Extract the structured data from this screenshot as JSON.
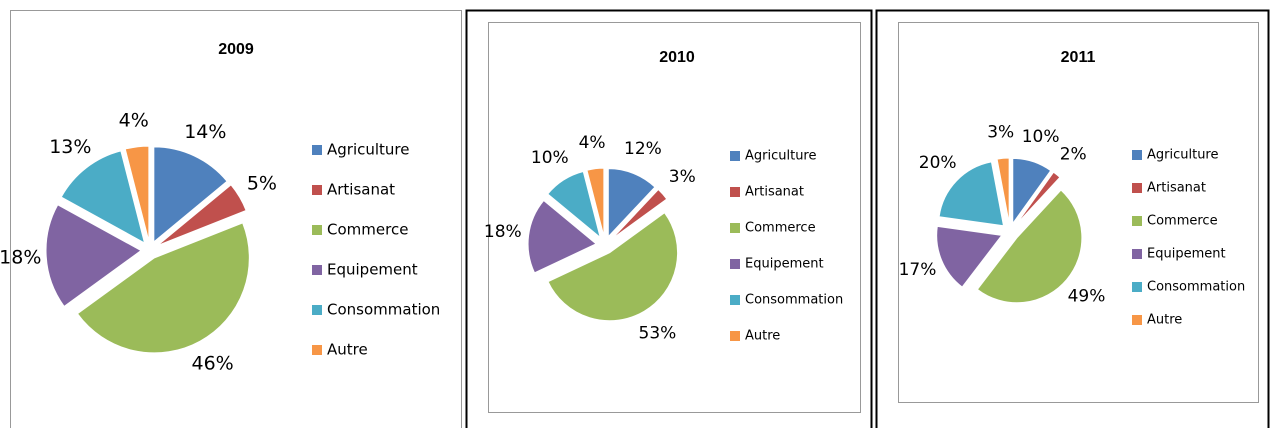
{
  "chart_data": [
    {
      "type": "pie",
      "title": "2009",
      "categories": [
        "Agriculture",
        "Artisanat",
        "Commerce",
        "Equipement",
        "Consommation",
        "Autre"
      ],
      "values": [
        14,
        5,
        46,
        18,
        13,
        4
      ],
      "value_labels": [
        "14%",
        "5%",
        "46%",
        "18%",
        "13%",
        "4%"
      ],
      "colors": [
        "#4F81BD",
        "#C0504D",
        "#9BBB59",
        "#8064A2",
        "#4BACC6",
        "#F79646"
      ],
      "legend": "right"
    },
    {
      "type": "pie",
      "title": "2010",
      "categories": [
        "Agriculture",
        "Artisanat",
        "Commerce",
        "Equipement",
        "Consommation",
        "Autre"
      ],
      "values": [
        12,
        3,
        53,
        18,
        10,
        4
      ],
      "value_labels": [
        "12%",
        "3%",
        "53%",
        "18%",
        "10%",
        "4%"
      ],
      "colors": [
        "#4F81BD",
        "#C0504D",
        "#9BBB59",
        "#8064A2",
        "#4BACC6",
        "#F79646"
      ],
      "legend": "right"
    },
    {
      "type": "pie",
      "title": "2011",
      "categories": [
        "Agriculture",
        "Artisanat",
        "Commerce",
        "Equipement",
        "Consommation",
        "Autre"
      ],
      "values": [
        10,
        2,
        49,
        17,
        20,
        3
      ],
      "value_labels": [
        "10%",
        "2%",
        "49%",
        "17%",
        "20%",
        "3%"
      ],
      "colors": [
        "#4F81BD",
        "#C0504D",
        "#9BBB59",
        "#8064A2",
        "#4BACC6",
        "#F79646"
      ],
      "legend": "right"
    }
  ]
}
